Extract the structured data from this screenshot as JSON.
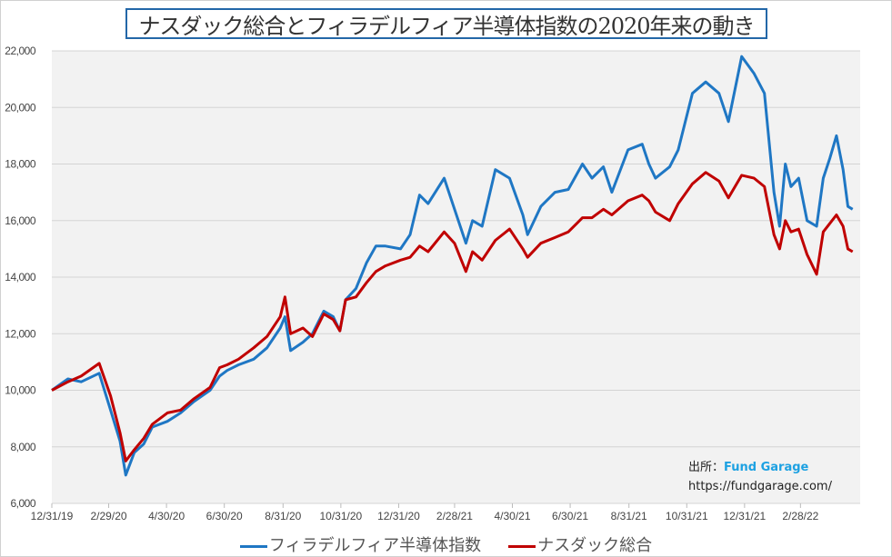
{
  "chart_data": {
    "type": "line",
    "title": "ナスダック総合とフィラデルフィア半導体指数の2020年来の動き",
    "ylim": [
      6000,
      22000
    ],
    "yticks": [
      "6,000",
      "8,000",
      "10,000",
      "12,000",
      "14,000",
      "16,000",
      "18,000",
      "20,000",
      "22,000"
    ],
    "xlim": [
      "2019-12-31",
      "2022-05-02"
    ],
    "xticks": [
      [
        "2019-12-31",
        "12/31/19"
      ],
      [
        "2020-02-29",
        "2/29/20"
      ],
      [
        "2020-04-30",
        "4/30/20"
      ],
      [
        "2020-06-30",
        "6/30/20"
      ],
      [
        "2020-08-31",
        "8/31/20"
      ],
      [
        "2020-10-31",
        "10/31/20"
      ],
      [
        "2020-12-31",
        "12/31/20"
      ],
      [
        "2021-02-28",
        "2/28/21"
      ],
      [
        "2021-04-30",
        "4/30/21"
      ],
      [
        "2021-06-30",
        "6/30/21"
      ],
      [
        "2021-08-31",
        "8/31/21"
      ],
      [
        "2021-10-31",
        "10/31/21"
      ],
      [
        "2021-12-31",
        "12/31/21"
      ],
      [
        "2022-02-28",
        "2/28/22"
      ]
    ],
    "grid": true,
    "legend_position": "bottom",
    "x": [
      "2019-12-31",
      "2020-01-17",
      "2020-01-31",
      "2020-02-19",
      "2020-03-02",
      "2020-03-12",
      "2020-03-18",
      "2020-03-27",
      "2020-04-06",
      "2020-04-15",
      "2020-05-01",
      "2020-05-15",
      "2020-05-29",
      "2020-06-15",
      "2020-06-25",
      "2020-07-03",
      "2020-07-15",
      "2020-07-31",
      "2020-08-14",
      "2020-08-28",
      "2020-09-02",
      "2020-09-08",
      "2020-09-21",
      "2020-10-01",
      "2020-10-13",
      "2020-10-23",
      "2020-10-30",
      "2020-11-05",
      "2020-11-16",
      "2020-11-27",
      "2020-12-07",
      "2020-12-17",
      "2021-01-02",
      "2021-01-12",
      "2021-01-22",
      "2021-01-31",
      "2021-02-17",
      "2021-02-28",
      "2021-03-12",
      "2021-03-19",
      "2021-03-29",
      "2021-04-12",
      "2021-04-27",
      "2021-05-11",
      "2021-05-16",
      "2021-05-30",
      "2021-06-14",
      "2021-06-28",
      "2021-07-13",
      "2021-07-23",
      "2021-08-04",
      "2021-08-13",
      "2021-08-30",
      "2021-09-14",
      "2021-09-21",
      "2021-09-28",
      "2021-10-13",
      "2021-10-22",
      "2021-11-06",
      "2021-11-20",
      "2021-12-04",
      "2021-12-14",
      "2021-12-28",
      "2022-01-10",
      "2022-01-21",
      "2022-01-31",
      "2022-02-06",
      "2022-02-12",
      "2022-02-18",
      "2022-02-26",
      "2022-03-07",
      "2022-03-17",
      "2022-03-24",
      "2022-03-31",
      "2022-04-07",
      "2022-04-14",
      "2022-04-19",
      "2022-04-24"
    ],
    "series": [
      {
        "name": "フィラデルフィア半導体指数",
        "color": "#1f77c4",
        "values": [
          10000,
          10400,
          10300,
          10600,
          9300,
          8200,
          7000,
          7800,
          8100,
          8700,
          8900,
          9200,
          9600,
          10000,
          10500,
          10700,
          10900,
          11100,
          11500,
          12200,
          12600,
          11400,
          11700,
          12000,
          12800,
          12600,
          12100,
          13200,
          13600,
          14500,
          15100,
          15100,
          15000,
          15500,
          16900,
          16600,
          17500,
          16400,
          15200,
          16000,
          15800,
          17800,
          17500,
          16200,
          15500,
          16500,
          17000,
          17100,
          18000,
          17500,
          17900,
          17000,
          18500,
          18700,
          18000,
          17500,
          17900,
          18500,
          20500,
          20900,
          20500,
          19500,
          21800,
          21200,
          20500,
          17000,
          15800,
          18000,
          17200,
          17500,
          16000,
          15800,
          17500,
          18200,
          19000,
          17800,
          16500,
          16400
        ]
      },
      {
        "name": "ナスダック総合",
        "color": "#c00000",
        "values": [
          10000,
          10300,
          10500,
          10950,
          9800,
          8500,
          7500,
          7900,
          8300,
          8800,
          9200,
          9300,
          9700,
          10100,
          10800,
          10900,
          11100,
          11500,
          11900,
          12600,
          13300,
          12000,
          12200,
          11900,
          12700,
          12500,
          12100,
          13200,
          13300,
          13800,
          14200,
          14400,
          14600,
          14700,
          15100,
          14900,
          15600,
          15200,
          14200,
          14900,
          14600,
          15300,
          15700,
          15000,
          14700,
          15200,
          15400,
          15600,
          16100,
          16100,
          16400,
          16200,
          16700,
          16900,
          16700,
          16300,
          16000,
          16600,
          17300,
          17700,
          17400,
          16800,
          17600,
          17500,
          17200,
          15500,
          15000,
          16000,
          15600,
          15700,
          14800,
          14100,
          15600,
          15900,
          16200,
          15800,
          15000,
          14900
        ]
      }
    ]
  },
  "source": {
    "label": "出所：",
    "brand": "Fund Garage",
    "url": "https://fundgarage.com/"
  }
}
